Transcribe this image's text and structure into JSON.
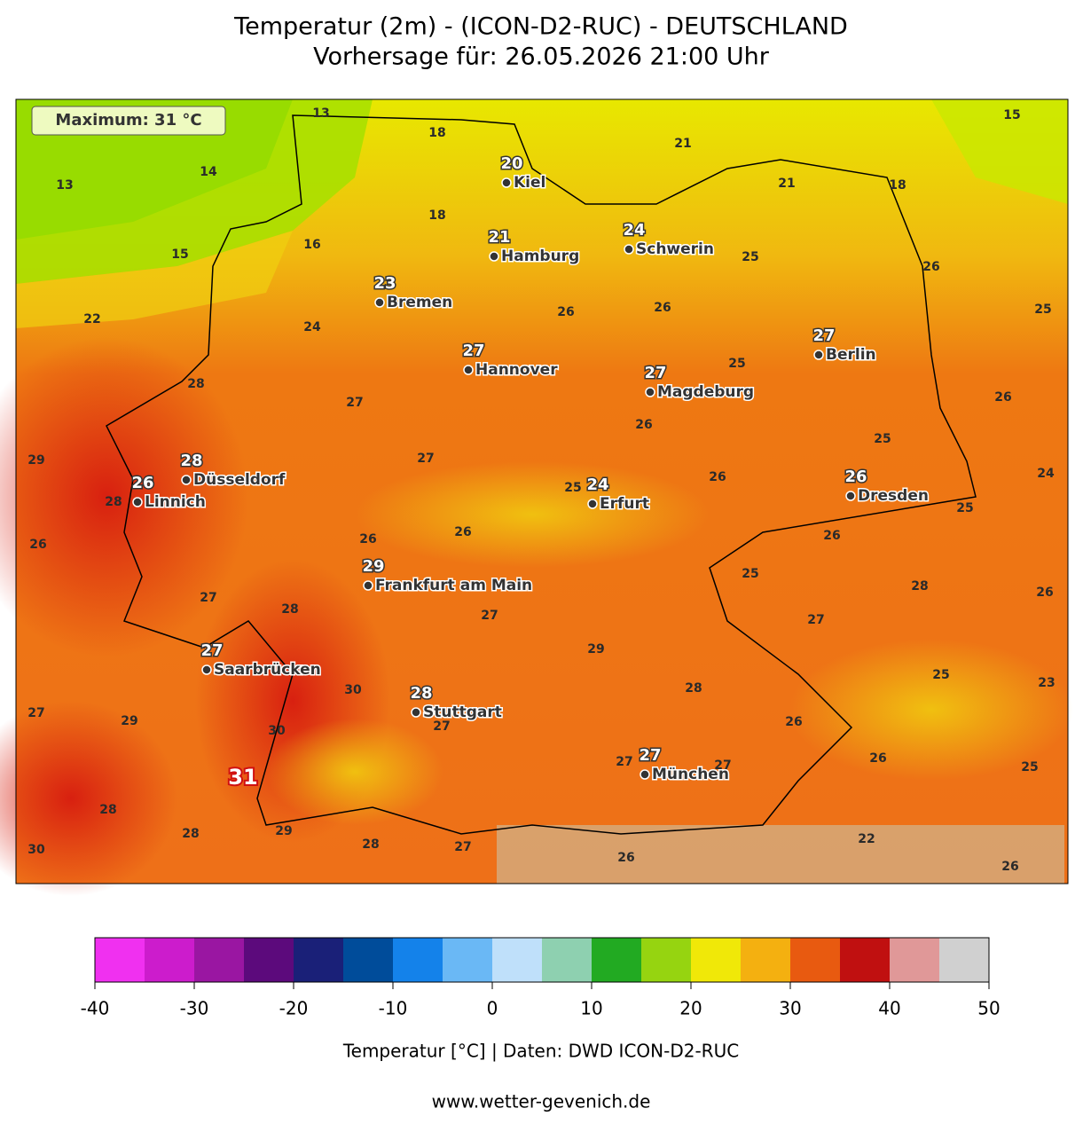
{
  "header": {
    "title": "Temperatur (2m) - (ICON-D2-RUC) - DEUTSCHLAND",
    "subtitle": "Vorhersage für: 26.05.2026 21:00 Uhr"
  },
  "map": {
    "maximum_box": "Maximum: 31 °C",
    "max_marker": 31,
    "cities": [
      {
        "name": "Kiel",
        "value": 20
      },
      {
        "name": "Hamburg",
        "value": 21
      },
      {
        "name": "Schwerin",
        "value": 24
      },
      {
        "name": "Bremen",
        "value": 23
      },
      {
        "name": "Hannover",
        "value": 27
      },
      {
        "name": "Berlin",
        "value": 27
      },
      {
        "name": "Magdeburg",
        "value": 27
      },
      {
        "name": "Düsseldorf",
        "value": 28
      },
      {
        "name": "Linnich",
        "value": 26
      },
      {
        "name": "Erfurt",
        "value": 24
      },
      {
        "name": "Dresden",
        "value": 26
      },
      {
        "name": "Frankfurt am Main",
        "value": 29
      },
      {
        "name": "Saarbrücken",
        "value": 27
      },
      {
        "name": "Stuttgart",
        "value": 28
      },
      {
        "name": "München",
        "value": 27
      }
    ],
    "field_values": [
      13,
      18,
      21,
      15,
      14,
      13,
      21,
      18,
      18,
      16,
      15,
      25,
      26,
      22,
      24,
      26,
      26,
      25,
      28,
      27,
      25,
      26,
      26,
      25,
      29,
      27,
      24,
      25,
      26,
      26,
      26,
      26,
      25,
      26,
      25,
      28,
      26,
      27,
      28,
      27,
      27,
      29,
      25,
      23,
      30,
      28,
      27,
      29,
      30,
      27,
      26,
      27,
      27,
      26,
      25,
      28,
      28,
      29,
      28,
      27,
      22,
      26,
      26,
      30,
      28
    ]
  },
  "colorbar": {
    "ticks": [
      -40,
      -30,
      -20,
      -10,
      0,
      10,
      20,
      30,
      40,
      50
    ],
    "colors": [
      "#f030f0",
      "#cc1ccc",
      "#9a16a2",
      "#5c0a7c",
      "#1a2078",
      "#004c9a",
      "#1482ea",
      "#6ab8f5",
      "#bfe0fa",
      "#8ed0b0",
      "#22aa22",
      "#96d410",
      "#f0e808",
      "#f4b010",
      "#e85a10",
      "#c01010",
      "#e09898",
      "#d0d0d0"
    ],
    "label": "Temperatur [°C] | Daten: DWD ICON-D2-RUC"
  },
  "footer": "www.wetter-gevenich.de"
}
